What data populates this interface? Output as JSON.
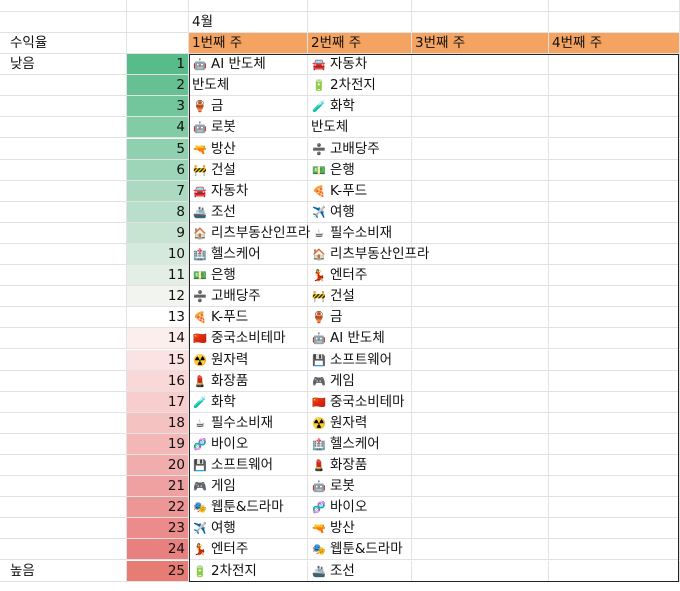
{
  "sheet": {
    "month": "4월",
    "left_header": "수익율",
    "low_label": "낮음",
    "high_label": "높음",
    "week_headers": [
      "1번째 주",
      "2번째 주",
      "3번째 주",
      "4번째 주"
    ],
    "ranks": [
      "1",
      "2",
      "3",
      "4",
      "5",
      "6",
      "7",
      "8",
      "9",
      "10",
      "11",
      "12",
      "13",
      "14",
      "15",
      "16",
      "17",
      "18",
      "19",
      "20",
      "21",
      "22",
      "23",
      "24",
      "25"
    ],
    "rank_colors": [
      "#57bb8a",
      "#65c193",
      "#73c69c",
      "#81cba5",
      "#8fd0ae",
      "#9dd5b8",
      "#abdac1",
      "#b9dfca",
      "#c7e4d3",
      "#d5e9dd",
      "#e3eee6",
      "#f1f4ef",
      "#ffffff",
      "#fdeeee",
      "#fbe3e3",
      "#f9d8d8",
      "#f7cdcd",
      "#f5c2c2",
      "#f3b7b7",
      "#f1acac",
      "#efa1a1",
      "#ed9696",
      "#eb8b8b",
      "#e98080",
      "#e67c73"
    ],
    "week1": [
      {
        "icon": "🤖",
        "label": "AI 반도체"
      },
      {
        "icon": "",
        "label": "반도체"
      },
      {
        "icon": "🏺",
        "label": "금"
      },
      {
        "icon": "🤖",
        "label": "로봇"
      },
      {
        "icon": "🔫",
        "label": "방산"
      },
      {
        "icon": "🚧",
        "label": "건설"
      },
      {
        "icon": "🚘",
        "label": "자동차"
      },
      {
        "icon": "🚢",
        "label": "조선"
      },
      {
        "icon": "🏠",
        "label": "리츠부동산인프라"
      },
      {
        "icon": "🏥",
        "label": "헬스케어"
      },
      {
        "icon": "💵",
        "label": "은행"
      },
      {
        "icon": "➗",
        "label": "고배당주"
      },
      {
        "icon": "🍕",
        "label": "K-푸드"
      },
      {
        "icon": "🇨🇳",
        "label": "중국소비테마"
      },
      {
        "icon": "☢️",
        "label": "원자력"
      },
      {
        "icon": "💄",
        "label": "화장품"
      },
      {
        "icon": "🧪",
        "label": "화학"
      },
      {
        "icon": "☕",
        "label": "필수소비재"
      },
      {
        "icon": "🧬",
        "label": "바이오"
      },
      {
        "icon": "💾",
        "label": "소프트웨어"
      },
      {
        "icon": "🎮",
        "label": "게임"
      },
      {
        "icon": "🎭",
        "label": "웹툰&드라마"
      },
      {
        "icon": "✈️",
        "label": "여행"
      },
      {
        "icon": "💃",
        "label": "엔터주"
      },
      {
        "icon": "🔋",
        "label": "2차전지"
      }
    ],
    "week2": [
      {
        "icon": "🚘",
        "label": "자동차"
      },
      {
        "icon": "🔋",
        "label": "2차전지"
      },
      {
        "icon": "🧪",
        "label": "화학"
      },
      {
        "icon": "",
        "label": "반도체"
      },
      {
        "icon": "➗",
        "label": "고배당주"
      },
      {
        "icon": "💵",
        "label": "은행"
      },
      {
        "icon": "🍕",
        "label": "K-푸드"
      },
      {
        "icon": "✈️",
        "label": "여행"
      },
      {
        "icon": "☕",
        "label": "필수소비재"
      },
      {
        "icon": "🏠",
        "label": "리츠부동산인프라"
      },
      {
        "icon": "💃",
        "label": "엔터주"
      },
      {
        "icon": "🚧",
        "label": "건설"
      },
      {
        "icon": "🏺",
        "label": "금"
      },
      {
        "icon": "🤖",
        "label": "AI 반도체"
      },
      {
        "icon": "💾",
        "label": "소프트웨어"
      },
      {
        "icon": "🎮",
        "label": "게임"
      },
      {
        "icon": "🇨🇳",
        "label": "중국소비테마"
      },
      {
        "icon": "☢️",
        "label": "원자력"
      },
      {
        "icon": "🏥",
        "label": "헬스케어"
      },
      {
        "icon": "💄",
        "label": "화장품"
      },
      {
        "icon": "🤖",
        "label": "로봇"
      },
      {
        "icon": "🧬",
        "label": "바이오"
      },
      {
        "icon": "🔫",
        "label": "방산"
      },
      {
        "icon": "🎭",
        "label": "웹툰&드라마"
      },
      {
        "icon": "🚢",
        "label": "조선"
      }
    ]
  }
}
